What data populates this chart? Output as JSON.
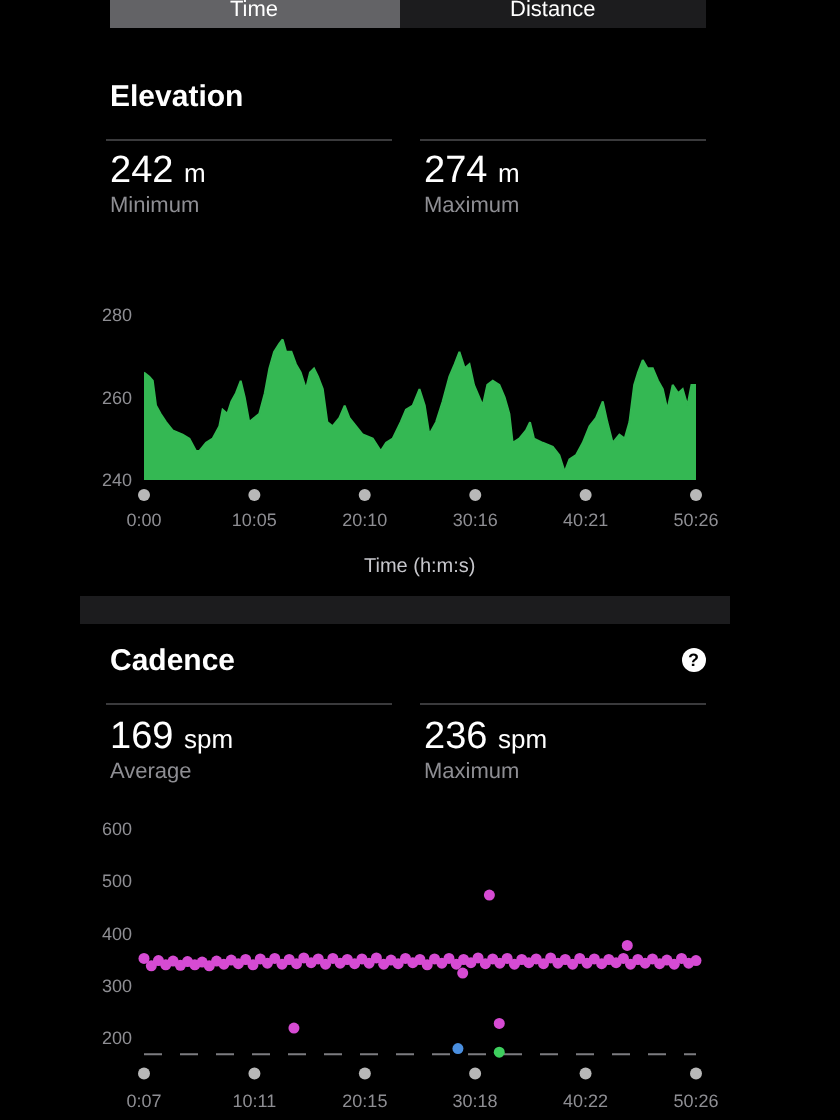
{
  "chart_data": [
    {
      "type": "area",
      "title": "Elevation",
      "xlabel": "Time (h:m:s)",
      "annotations": [
        "Time",
        "Distance",
        "242 m",
        "Minimum",
        "274 m",
        "Maximum"
      ],
      "x": [
        0,
        29,
        48,
        66,
        91,
        121,
        157,
        212,
        249,
        285,
        303,
        340,
        376,
        413,
        431,
        457,
        479,
        504,
        530,
        552,
        577,
        603,
        632,
        662,
        687,
        713,
        742,
        760,
        779,
        808,
        833,
        859,
        888,
        910,
        932,
        954,
        980,
        1005,
        1034,
        1071,
        1100,
        1126,
        1162,
        1199,
        1254,
        1298,
        1327,
        1363,
        1407,
        1436,
        1473,
        1510,
        1539,
        1564,
        1601,
        1637,
        1674,
        1703,
        1729,
        1758,
        1784,
        1809,
        1838,
        1857,
        1882,
        1912,
        1948,
        1977,
        2003,
        2021,
        2057,
        2094,
        2116,
        2138,
        2186,
        2241,
        2277,
        2306,
        2332,
        2368,
        2405,
        2442,
        2478,
        2515,
        2540,
        2569,
        2606,
        2635,
        2661,
        2687,
        2708,
        2734,
        2760,
        2789,
        2818,
        2844,
        2869,
        2898,
        2928,
        2953,
        2979,
        3001,
        3026
      ],
      "series": [
        {
          "color": "#34b853",
          "values": [
            266,
            265,
            264,
            258,
            256,
            254,
            252,
            251,
            250,
            247,
            247,
            249,
            250,
            253,
            257,
            256,
            259,
            261,
            264,
            260,
            254,
            255,
            256,
            261,
            267,
            271,
            273,
            274,
            271,
            271,
            268,
            266,
            262,
            266,
            267,
            265,
            262,
            254,
            253,
            255,
            258,
            255,
            253,
            251,
            250,
            247,
            249,
            250,
            254,
            257,
            258,
            262,
            258,
            251,
            254,
            259,
            265,
            268,
            271,
            267,
            268,
            263,
            260,
            258,
            263,
            264,
            263,
            260,
            256,
            249,
            250,
            252,
            254,
            250,
            249,
            248,
            246,
            242,
            245,
            246,
            249,
            253,
            255,
            259,
            254,
            249,
            251,
            250,
            254,
            263,
            266,
            269,
            267,
            267,
            264,
            262,
            257,
            263,
            261,
            262,
            258,
            263,
            263
          ]
        }
      ],
      "xlim": [
        0,
        3026
      ],
      "ylim": [
        240,
        280
      ],
      "xticks": [
        {
          "value": 0,
          "label": "0:00"
        },
        {
          "value": 605,
          "label": "10:05"
        },
        {
          "value": 1210,
          "label": "20:10"
        },
        {
          "value": 1816,
          "label": "30:16"
        },
        {
          "value": 2421,
          "label": "40:21"
        },
        {
          "value": 3026,
          "label": "50:26"
        }
      ],
      "yticks": [
        240,
        260,
        280
      ]
    },
    {
      "type": "scatter",
      "title": "Cadence",
      "annotations": [
        "169 spm",
        "Average",
        "236 spm",
        "Maximum",
        "?"
      ],
      "marker": "circle",
      "series": [
        {
          "color": "#d64bd3",
          "x": [
            7,
            47,
            86,
            126,
            166,
            206,
            245,
            285,
            325,
            364,
            404,
            444,
            484,
            523,
            563,
            603,
            643,
            682,
            722,
            762,
            801,
            841,
            881,
            921,
            960,
            1000,
            1040,
            1080,
            1119,
            1159,
            1199,
            1238,
            1278,
            1318,
            1358,
            1397,
            1437,
            1477,
            1516,
            1556,
            1596,
            1636,
            1675,
            1715,
            1755,
            1795,
            1834,
            1874,
            1914,
            1953,
            1993,
            2033,
            2073,
            2112,
            2152,
            2192,
            2231,
            2271,
            2311,
            2351,
            2390,
            2430,
            2470,
            2510,
            2549,
            2589,
            2629,
            2668,
            2708,
            2748,
            2788,
            2827,
            2867,
            2907,
            2947,
            2986,
            3026,
            827,
            1750,
            1896,
            1950,
            2650
          ],
          "values": [
            352,
            338,
            348,
            340,
            347,
            339,
            346,
            340,
            345,
            338,
            347,
            341,
            349,
            342,
            350,
            340,
            351,
            343,
            352,
            341,
            350,
            342,
            353,
            344,
            351,
            341,
            352,
            343,
            350,
            342,
            351,
            343,
            353,
            341,
            349,
            342,
            352,
            344,
            350,
            340,
            351,
            343,
            352,
            341,
            350,
            344,
            353,
            342,
            351,
            343,
            352,
            341,
            350,
            344,
            351,
            342,
            353,
            343,
            350,
            341,
            352,
            343,
            351,
            342,
            350,
            344,
            352,
            341,
            350,
            343,
            351,
            342,
            349,
            341,
            352,
            343,
            348,
            219,
            324,
            473,
            228,
            377
          ]
        },
        {
          "color": "#4a8fe0",
          "x": [
            1724
          ],
          "values": [
            180
          ]
        },
        {
          "color": "#3ecf5e",
          "x": [
            1950
          ],
          "values": [
            173
          ]
        }
      ],
      "xlim": [
        7,
        3026
      ],
      "ylim": [
        160,
        600
      ],
      "xticks": [
        {
          "value": 7,
          "label": "0:07"
        },
        {
          "value": 611,
          "label": "10:11"
        },
        {
          "value": 1215,
          "label": "20:15"
        },
        {
          "value": 1818,
          "label": "30:18"
        },
        {
          "value": 2422,
          "label": "40:22"
        },
        {
          "value": 3026,
          "label": "50:26"
        }
      ],
      "yticks": [
        200,
        300,
        400,
        500,
        600
      ],
      "ref_lines": [
        {
          "axis": "y",
          "value": 169,
          "color": "#7c7c80",
          "line_style": "dashed"
        }
      ]
    }
  ]
}
